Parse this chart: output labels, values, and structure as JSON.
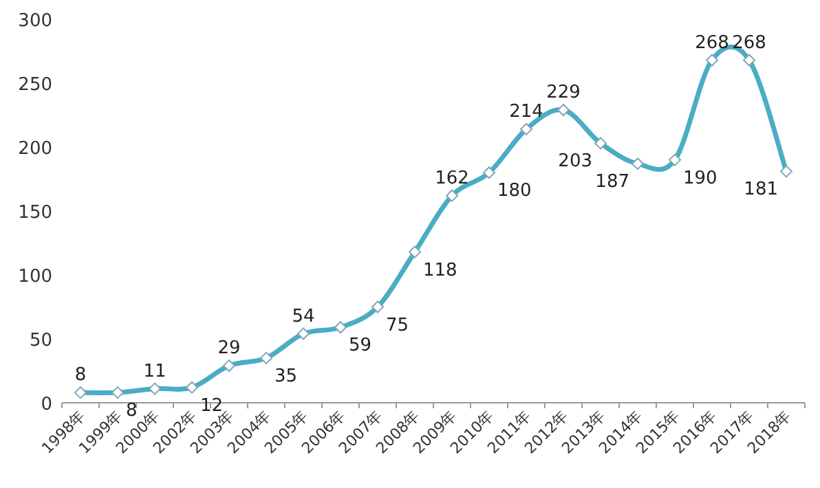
{
  "chart_data": {
    "type": "line",
    "categories": [
      "1998年",
      "1999年",
      "2000年",
      "2002年",
      "2003年",
      "2004年",
      "2005年",
      "2006年",
      "2007年",
      "2008年",
      "2009年",
      "2010年",
      "2011年",
      "2012年",
      "2013年",
      "2014年",
      "2015年",
      "2016年",
      "2017年",
      "2018年"
    ],
    "values": [
      8,
      8,
      11,
      12,
      29,
      35,
      54,
      59,
      75,
      118,
      162,
      180,
      214,
      229,
      203,
      187,
      190,
      268,
      268,
      181
    ],
    "color": "#4bacc6",
    "ylim": [
      0,
      300
    ],
    "yticks": [
      0,
      50,
      100,
      150,
      200,
      250,
      300
    ],
    "marker": "diamond",
    "line_style": "solid",
    "data_labels": true,
    "grid": false
  }
}
